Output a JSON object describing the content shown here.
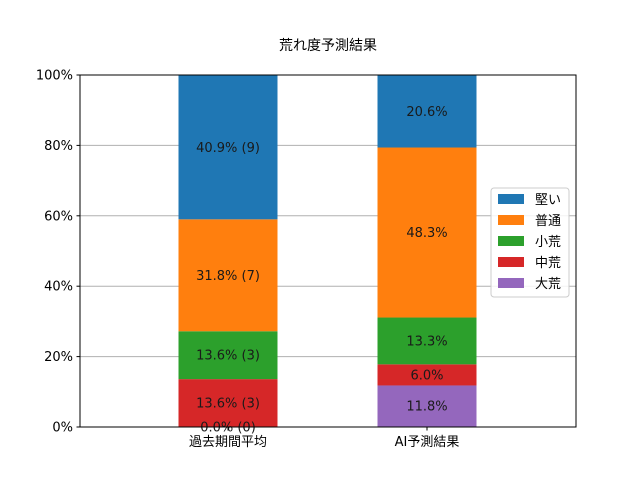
{
  "chart_data": {
    "type": "bar",
    "stacked": true,
    "percent_stacked": true,
    "title": "荒れ度予測結果",
    "xlabel": "",
    "ylabel": "",
    "categories": [
      "過去期間平均",
      "AI予測結果"
    ],
    "ylim": [
      0,
      100
    ],
    "y_ticks": [
      "0%",
      "20%",
      "40%",
      "60%",
      "80%",
      "100%"
    ],
    "grid": "horizontal",
    "legend_position": "right",
    "series": [
      {
        "name": "大荒",
        "color": "#9467bd",
        "values": [
          0.0,
          11.8
        ],
        "labels": [
          "0.0% (0)",
          "11.8%"
        ]
      },
      {
        "name": "中荒",
        "color": "#d62728",
        "values": [
          13.6,
          6.0
        ],
        "labels": [
          "13.6% (3)",
          "6.0%"
        ]
      },
      {
        "name": "小荒",
        "color": "#2ca02c",
        "values": [
          13.6,
          13.3
        ],
        "labels": [
          "13.6% (3)",
          "13.3%"
        ]
      },
      {
        "name": "普通",
        "color": "#ff7f0e",
        "values": [
          31.8,
          48.3
        ],
        "labels": [
          "31.8% (7)",
          "48.3%"
        ]
      },
      {
        "name": "堅い",
        "color": "#1f77b4",
        "values": [
          40.9,
          20.6
        ],
        "labels": [
          "40.9% (9)",
          "20.6%"
        ]
      }
    ],
    "legend_order": [
      "堅い",
      "普通",
      "小荒",
      "中荒",
      "大荒"
    ]
  }
}
